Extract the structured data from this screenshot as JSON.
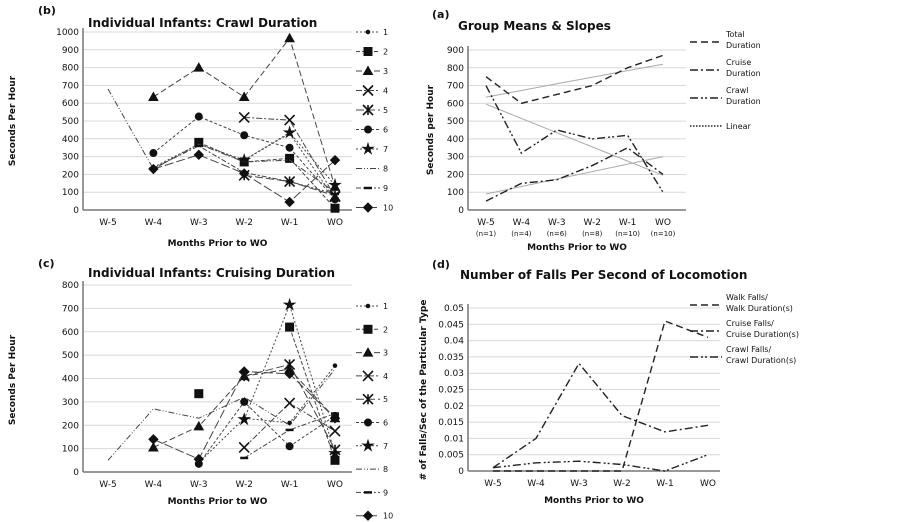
{
  "chart_data": [
    {
      "id": "b",
      "type": "line",
      "panel_label": "(b)",
      "title": "Individual Infants: Crawl Duration",
      "xlabel": "Months Prior to WO",
      "ylabel": "Seconds Per Hour",
      "categories": [
        "W-5",
        "W-4",
        "W-3",
        "W-2",
        "W-1",
        "WO"
      ],
      "ylim": [
        0,
        1000
      ],
      "yticks": [
        "0",
        "100",
        "200",
        "300",
        "400",
        "500",
        "600",
        "700",
        "800",
        "900",
        "1000"
      ],
      "grid": true,
      "legend_position": "right",
      "series": [
        {
          "name": "1",
          "marker": "dot",
          "values": [
            null,
            240,
            370,
            280,
            430,
            60
          ]
        },
        {
          "name": "2",
          "marker": "square",
          "values": [
            null,
            null,
            380,
            270,
            290,
            10
          ]
        },
        {
          "name": "3",
          "marker": "triangle",
          "values": [
            null,
            635,
            800,
            635,
            965,
            130
          ]
        },
        {
          "name": "4",
          "marker": "x",
          "values": [
            null,
            null,
            null,
            520,
            505,
            75
          ]
        },
        {
          "name": "5",
          "marker": "asterisk",
          "values": [
            null,
            null,
            null,
            195,
            160,
            80
          ]
        },
        {
          "name": "6",
          "marker": "circle",
          "values": [
            null,
            320,
            525,
            420,
            350,
            60
          ]
        },
        {
          "name": "7",
          "marker": "star",
          "values": [
            null,
            null,
            null,
            280,
            435,
            140
          ]
        },
        {
          "name": "8",
          "marker": "none",
          "values": [
            680,
            230,
            370,
            270,
            280,
            100
          ]
        },
        {
          "name": "9",
          "marker": "dash",
          "values": [
            null,
            235,
            360,
            210,
            160,
            90
          ]
        },
        {
          "name": "10",
          "marker": "diamond",
          "values": [
            null,
            230,
            310,
            205,
            45,
            280
          ]
        }
      ]
    },
    {
      "id": "a",
      "type": "line",
      "panel_label": "(a)",
      "title": "Group Means & Slopes",
      "xlabel": "Months Prior to WO",
      "ylabel": "Seconds per Hour",
      "categories": [
        "W-5",
        "W-4",
        "W-3",
        "W-2",
        "W-1",
        "WO"
      ],
      "category_notes": [
        "(n=1)",
        "(n=4)",
        "(n=6)",
        "(n=8)",
        "(n=10)",
        "(n=10)"
      ],
      "ylim": [
        0,
        900
      ],
      "yticks": [
        "0",
        "100",
        "200",
        "300",
        "400",
        "500",
        "600",
        "700",
        "800",
        "900"
      ],
      "grid": true,
      "legend_position": "right",
      "series": [
        {
          "name": "Total Duration",
          "name_lines": [
            "Total",
            "Duration"
          ],
          "style": "dash",
          "values": [
            750,
            600,
            650,
            700,
            800,
            870
          ]
        },
        {
          "name": "Cruise Duration",
          "name_lines": [
            "Cruise",
            "Duration"
          ],
          "style": "dashdot",
          "values": [
            50,
            150,
            170,
            250,
            350,
            200
          ]
        },
        {
          "name": "Crawl Duration",
          "name_lines": [
            "Crawl",
            "Duration"
          ],
          "style": "dashdotdot",
          "values": [
            700,
            320,
            450,
            400,
            420,
            100
          ]
        },
        {
          "name": "Linear",
          "name_lines": [
            "Linear"
          ],
          "style": "dotted",
          "values": null
        }
      ],
      "trendlines": [
        {
          "of": "Total Duration",
          "values": [
            635,
            672,
            710,
            747,
            784,
            820
          ]
        },
        {
          "of": "Cruise Duration",
          "values": [
            90,
            132,
            174,
            216,
            258,
            300
          ]
        },
        {
          "of": "Crawl Duration",
          "values": [
            595,
            515,
            435,
            355,
            275,
            195
          ]
        }
      ]
    },
    {
      "id": "c",
      "type": "line",
      "panel_label": "(c)",
      "title": "Individual Infants: Cruising Duration",
      "xlabel": "Months Prior to WO",
      "ylabel": "Seconds Per Hour",
      "categories": [
        "W-5",
        "W-4",
        "W-3",
        "W-2",
        "W-1",
        "WO"
      ],
      "ylim": [
        0,
        800
      ],
      "yticks": [
        "0",
        "100",
        "200",
        "300",
        "400",
        "500",
        "600",
        "700",
        "800"
      ],
      "grid": true,
      "legend_position": "right",
      "series": [
        {
          "name": "1",
          "marker": "dot",
          "values": [
            null,
            null,
            40,
            230,
            210,
            455
          ]
        },
        {
          "name": "2",
          "marker": "square",
          "values": [
            null,
            null,
            335,
            null,
            620,
            50
          ]
        },
        {
          "name": "3",
          "marker": "triangle",
          "values": [
            null,
            105,
            195,
            410,
            440,
            230
          ]
        },
        {
          "name": "4",
          "marker": "x",
          "values": [
            null,
            null,
            null,
            105,
            295,
            175
          ]
        },
        {
          "name": "5",
          "marker": "asterisk",
          "values": [
            null,
            null,
            null,
            410,
            460,
            95
          ]
        },
        {
          "name": "6",
          "marker": "circle",
          "values": [
            null,
            null,
            35,
            300,
            110,
            240
          ]
        },
        {
          "name": "7",
          "marker": "star",
          "values": [
            null,
            null,
            null,
            225,
            715,
            80
          ]
        },
        {
          "name": "8",
          "marker": "none",
          "values": [
            50,
            270,
            230,
            320,
            200,
            440
          ]
        },
        {
          "name": "9",
          "marker": "dash",
          "values": [
            null,
            null,
            null,
            60,
            180,
            250
          ]
        },
        {
          "name": "10",
          "marker": "diamond",
          "values": [
            null,
            140,
            55,
            430,
            420,
            230
          ]
        }
      ]
    },
    {
      "id": "d",
      "type": "line",
      "panel_label": "(d)",
      "title": "Number of Falls Per Second of Locomotion",
      "xlabel": "Months Prior to WO",
      "ylabel": "# of Falls/Sec of the Particular Type",
      "categories": [
        "W-5",
        "W-4",
        "W-3",
        "W-2",
        "W-1",
        "WO"
      ],
      "ylim": [
        0,
        0.05
      ],
      "yticks": [
        "0",
        "0.005",
        "0.01",
        "0.015",
        "0.02",
        "0.025",
        "0.03",
        "0.035",
        "0.04",
        "0.045",
        "0.05"
      ],
      "grid": true,
      "legend_position": "right",
      "series": [
        {
          "name": "Walk Falls/ Walk Duration(s)",
          "name_lines": [
            "Walk Falls/",
            "Walk Duration(s)"
          ],
          "style": "dash",
          "values": [
            0,
            0,
            0,
            0,
            0.046,
            0.041
          ]
        },
        {
          "name": "Cruise Falls/ Cruise Duration(s)",
          "name_lines": [
            "Cruise Falls/",
            "Cruise Duration(s)"
          ],
          "style": "dashdot",
          "values": [
            0.001,
            0.01,
            0.033,
            0.017,
            0.012,
            0.014
          ]
        },
        {
          "name": "Crawl Falls/ Crawl Duration(s)",
          "name_lines": [
            "Crawl Falls/",
            "Crawl Duration(s)"
          ],
          "style": "dashdotdot",
          "values": [
            0.001,
            0.0025,
            0.003,
            0.002,
            0,
            0.005
          ]
        }
      ]
    }
  ]
}
